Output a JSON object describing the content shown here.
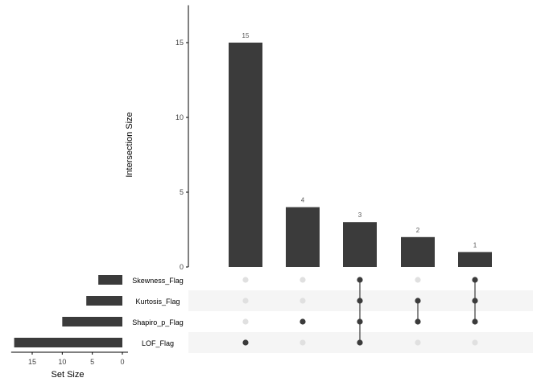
{
  "chart_data": {
    "type": "upset",
    "intersection_axis": {
      "label": "Intersection Size",
      "ticks": [
        0,
        5,
        10,
        15
      ],
      "ylim": [
        0,
        17.5
      ]
    },
    "set_size_axis": {
      "label": "Set Size",
      "ticks": [
        15,
        10,
        5,
        0
      ],
      "xlim": [
        0,
        18.5
      ]
    },
    "sets": [
      {
        "name": "Skewness_Flag",
        "size": 4
      },
      {
        "name": "Kurtosis_Flag",
        "size": 6
      },
      {
        "name": "Shapiro_p_Flag",
        "size": 10
      },
      {
        "name": "LOF_Flag",
        "size": 18
      }
    ],
    "intersections": [
      {
        "sets": [
          "LOF_Flag"
        ],
        "size": 15,
        "label": "15"
      },
      {
        "sets": [
          "Shapiro_p_Flag"
        ],
        "size": 4,
        "label": "4"
      },
      {
        "sets": [
          "Skewness_Flag",
          "Kurtosis_Flag",
          "Shapiro_p_Flag",
          "LOF_Flag"
        ],
        "size": 3,
        "label": "3"
      },
      {
        "sets": [
          "Kurtosis_Flag",
          "Shapiro_p_Flag"
        ],
        "size": 2,
        "label": "2"
      },
      {
        "sets": [
          "Skewness_Flag",
          "Kurtosis_Flag",
          "Shapiro_p_Flag"
        ],
        "size": 1,
        "label": "1"
      }
    ],
    "colors": {
      "bar": "#3b3b3b",
      "dot_active": "#3b3b3b",
      "dot_inactive": "#e0e0e0",
      "row_shade": "#f5f5f5",
      "count_label": "#555555"
    },
    "grid": false
  }
}
